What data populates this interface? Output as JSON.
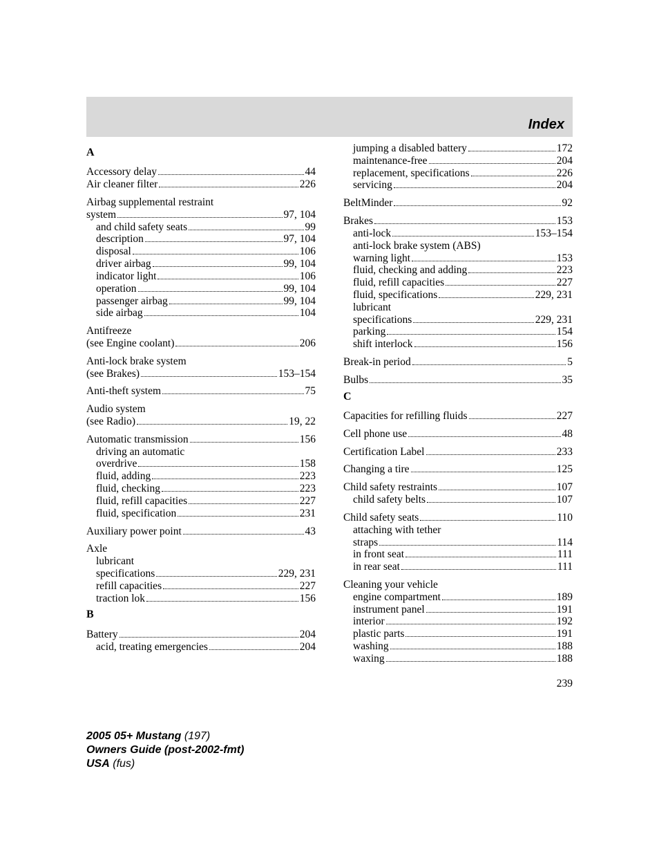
{
  "header": {
    "title": "Index"
  },
  "page_number": "239",
  "footer": {
    "line1a": "2005 05+ Mustang",
    "line1b": "(197)",
    "line2": "Owners Guide (post-2002-fmt)",
    "line3a": "USA",
    "line3b": "(fus)"
  },
  "left": [
    {
      "type": "letter",
      "text": "A"
    },
    {
      "type": "row",
      "label": "Accessory delay",
      "page": "44"
    },
    {
      "type": "row",
      "label": "Air cleaner filter",
      "page": "226"
    },
    {
      "type": "gap"
    },
    {
      "type": "row",
      "label": "Airbag supplemental restraint",
      "nopage": true
    },
    {
      "type": "row",
      "label": "system",
      "page": "97, 104"
    },
    {
      "type": "row",
      "sub": true,
      "label": "and child safety seats",
      "page": "99"
    },
    {
      "type": "row",
      "sub": true,
      "label": "description",
      "page": "97, 104"
    },
    {
      "type": "row",
      "sub": true,
      "label": "disposal",
      "page": "106"
    },
    {
      "type": "row",
      "sub": true,
      "label": "driver airbag",
      "page": "99, 104"
    },
    {
      "type": "row",
      "sub": true,
      "label": "indicator light",
      "page": "106"
    },
    {
      "type": "row",
      "sub": true,
      "label": "operation",
      "page": "99, 104"
    },
    {
      "type": "row",
      "sub": true,
      "label": "passenger airbag",
      "page": "99, 104"
    },
    {
      "type": "row",
      "sub": true,
      "label": "side airbag",
      "page": "104"
    },
    {
      "type": "gap"
    },
    {
      "type": "row",
      "label": "Antifreeze",
      "nopage": true
    },
    {
      "type": "row",
      "label": "(see Engine coolant)",
      "page": "206"
    },
    {
      "type": "gap"
    },
    {
      "type": "row",
      "label": "Anti-lock brake system",
      "nopage": true
    },
    {
      "type": "row",
      "label": "(see Brakes)",
      "page": "153–154"
    },
    {
      "type": "gap"
    },
    {
      "type": "row",
      "label": "Anti-theft system",
      "page": "75"
    },
    {
      "type": "gap"
    },
    {
      "type": "row",
      "label": "Audio system",
      "nopage": true
    },
    {
      "type": "row",
      "label": "(see Radio)",
      "page": "19, 22"
    },
    {
      "type": "gap"
    },
    {
      "type": "row",
      "label": "Automatic transmission",
      "page": "156"
    },
    {
      "type": "row",
      "sub": true,
      "label": "driving an automatic",
      "nopage": true
    },
    {
      "type": "row",
      "sub": true,
      "label": "overdrive",
      "page": "158"
    },
    {
      "type": "row",
      "sub": true,
      "label": "fluid, adding",
      "page": "223"
    },
    {
      "type": "row",
      "sub": true,
      "label": "fluid, checking",
      "page": "223"
    },
    {
      "type": "row",
      "sub": true,
      "label": "fluid, refill capacities",
      "page": "227"
    },
    {
      "type": "row",
      "sub": true,
      "label": "fluid, specification",
      "page": "231"
    },
    {
      "type": "gap"
    },
    {
      "type": "row",
      "label": "Auxiliary power point",
      "page": "43"
    },
    {
      "type": "gap"
    },
    {
      "type": "row",
      "label": "Axle",
      "nopage": true
    },
    {
      "type": "row",
      "sub": true,
      "label": "lubricant",
      "nopage": true
    },
    {
      "type": "row",
      "sub": true,
      "label": "specifications",
      "page": "229, 231"
    },
    {
      "type": "row",
      "sub": true,
      "label": "refill capacities",
      "page": "227"
    },
    {
      "type": "row",
      "sub": true,
      "label": "traction lok",
      "page": "156"
    },
    {
      "type": "letter",
      "text": "B"
    },
    {
      "type": "row",
      "label": "Battery",
      "page": "204"
    },
    {
      "type": "row",
      "sub": true,
      "label": "acid, treating emergencies",
      "page": "204"
    }
  ],
  "right": [
    {
      "type": "row",
      "sub": true,
      "label": "jumping a disabled battery",
      "page": "172"
    },
    {
      "type": "row",
      "sub": true,
      "label": "maintenance-free",
      "page": "204"
    },
    {
      "type": "row",
      "sub": true,
      "label": "replacement, specifications",
      "page": "226"
    },
    {
      "type": "row",
      "sub": true,
      "label": "servicing",
      "page": "204"
    },
    {
      "type": "gap"
    },
    {
      "type": "row",
      "label": "BeltMinder",
      "page": "92"
    },
    {
      "type": "gap"
    },
    {
      "type": "row",
      "label": "Brakes",
      "page": "153"
    },
    {
      "type": "row",
      "sub": true,
      "label": "anti-lock",
      "page": "153–154"
    },
    {
      "type": "row",
      "sub": true,
      "label": "anti-lock brake system (ABS)",
      "nopage": true
    },
    {
      "type": "row",
      "sub": true,
      "label": "warning light",
      "page": "153"
    },
    {
      "type": "row",
      "sub": true,
      "label": "fluid, checking and adding",
      "page": "223"
    },
    {
      "type": "row",
      "sub": true,
      "label": "fluid, refill capacities",
      "page": "227"
    },
    {
      "type": "row",
      "sub": true,
      "label": "fluid, specifications",
      "page": "229, 231"
    },
    {
      "type": "row",
      "sub": true,
      "label": "lubricant",
      "nopage": true
    },
    {
      "type": "row",
      "sub": true,
      "label": "specifications",
      "page": "229, 231"
    },
    {
      "type": "row",
      "sub": true,
      "label": "parking",
      "page": "154"
    },
    {
      "type": "row",
      "sub": true,
      "label": "shift interlock",
      "page": "156"
    },
    {
      "type": "gap"
    },
    {
      "type": "row",
      "label": "Break-in period",
      "page": "5"
    },
    {
      "type": "gap"
    },
    {
      "type": "row",
      "label": "Bulbs",
      "page": "35"
    },
    {
      "type": "letter",
      "text": "C"
    },
    {
      "type": "row",
      "label": "Capacities for refilling fluids",
      "page": "227"
    },
    {
      "type": "gap"
    },
    {
      "type": "row",
      "label": "Cell phone use",
      "page": "48"
    },
    {
      "type": "gap"
    },
    {
      "type": "row",
      "label": "Certification Label",
      "page": "233"
    },
    {
      "type": "gap"
    },
    {
      "type": "row",
      "label": "Changing a tire",
      "page": "125"
    },
    {
      "type": "gap"
    },
    {
      "type": "row",
      "label": "Child safety restraints",
      "page": "107"
    },
    {
      "type": "row",
      "sub": true,
      "label": "child safety belts",
      "page": "107"
    },
    {
      "type": "gap"
    },
    {
      "type": "row",
      "label": "Child safety seats",
      "page": "110"
    },
    {
      "type": "row",
      "sub": true,
      "label": "attaching with tether",
      "nopage": true
    },
    {
      "type": "row",
      "sub": true,
      "label": "straps",
      "page": "114"
    },
    {
      "type": "row",
      "sub": true,
      "label": "in front seat",
      "page": "111"
    },
    {
      "type": "row",
      "sub": true,
      "label": "in rear seat",
      "page": "111"
    },
    {
      "type": "gap"
    },
    {
      "type": "row",
      "label": "Cleaning your vehicle",
      "nopage": true
    },
    {
      "type": "row",
      "sub": true,
      "label": "engine compartment",
      "page": "189"
    },
    {
      "type": "row",
      "sub": true,
      "label": "instrument panel",
      "page": "191"
    },
    {
      "type": "row",
      "sub": true,
      "label": "interior",
      "page": "192"
    },
    {
      "type": "row",
      "sub": true,
      "label": "plastic parts",
      "page": "191"
    },
    {
      "type": "row",
      "sub": true,
      "label": "washing",
      "page": "188"
    },
    {
      "type": "row",
      "sub": true,
      "label": "waxing",
      "page": "188"
    }
  ]
}
